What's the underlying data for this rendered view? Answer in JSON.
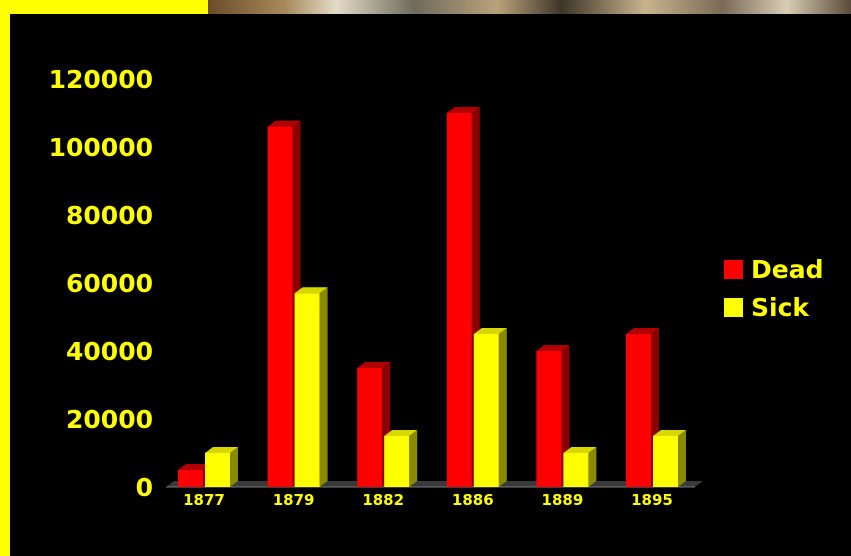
{
  "chart_data": {
    "type": "bar",
    "categories": [
      "1877",
      "1879",
      "1882",
      "1886",
      "1889",
      "1895"
    ],
    "series": [
      {
        "name": "Dead",
        "color": "#ff0000",
        "side_color": "#8a0000",
        "top_color": "#b00000",
        "values": [
          5000,
          106000,
          35000,
          110000,
          40000,
          45000
        ]
      },
      {
        "name": "Sick",
        "color": "#ffff00",
        "side_color": "#8a8a00",
        "top_color": "#d8d800",
        "values": [
          10000,
          57000,
          15000,
          45000,
          10000,
          15000
        ]
      }
    ],
    "y_ticks": [
      "0",
      "20000",
      "40000",
      "60000",
      "80000",
      "100000",
      "120000"
    ],
    "ylim": [
      0,
      120000
    ],
    "legend_position": "right",
    "grid": false,
    "text_color": "#ffff00",
    "background": "#000000"
  },
  "legend": {
    "items": [
      {
        "label": "Dead",
        "color": "#ff0000"
      },
      {
        "label": "Sick",
        "color": "#ffff00"
      }
    ]
  }
}
